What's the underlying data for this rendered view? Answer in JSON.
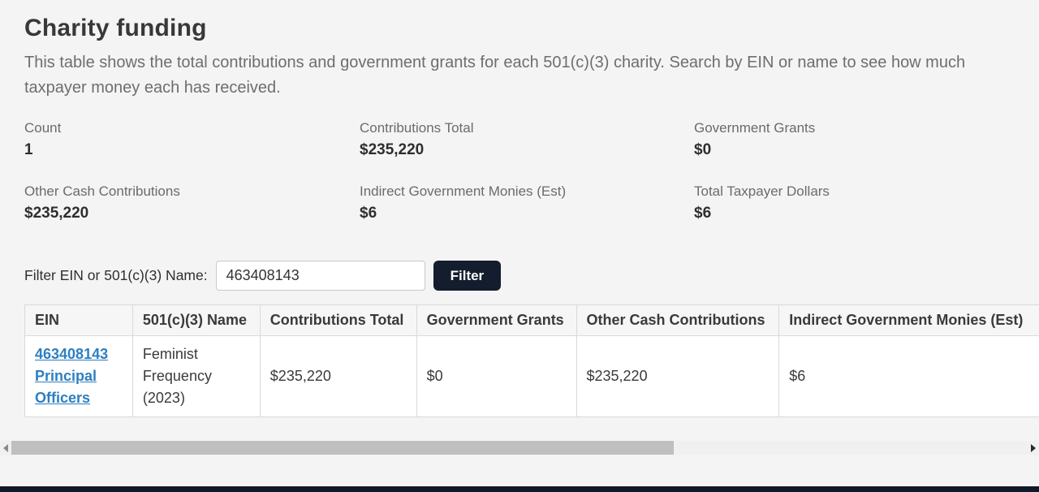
{
  "page": {
    "title": "Charity funding",
    "description": "This table shows the total contributions and government grants for each 501(c)(3) charity. Search by EIN or name to see how much taxpayer money each has received."
  },
  "stats": [
    {
      "label": "Count",
      "value": "1"
    },
    {
      "label": "Contributions Total",
      "value": "$235,220"
    },
    {
      "label": "Government Grants",
      "value": "$0"
    },
    {
      "label": "Other Cash Contributions",
      "value": "$235,220"
    },
    {
      "label": "Indirect Government Monies (Est)",
      "value": "$6"
    },
    {
      "label": "Total Taxpayer Dollars",
      "value": "$6"
    }
  ],
  "filter": {
    "label": "Filter EIN or 501(c)(3) Name:",
    "input_value": "463408143",
    "button_label": "Filter"
  },
  "table": {
    "columns": [
      "EIN",
      "501(c)(3) Name",
      "Contributions Total",
      "Government Grants",
      "Other Cash Contributions",
      "Indirect Government Monies (Est)"
    ],
    "rows": [
      {
        "ein_link": "463408143",
        "officers_link": "Principal Officers",
        "name": "Feminist Frequency (2023)",
        "contributions_total": "$235,220",
        "government_grants": "$0",
        "other_cash_contributions": "$235,220",
        "indirect_government_monies": "$6"
      }
    ]
  },
  "colors": {
    "accent_navy": "#141d2e",
    "link_blue": "#2d7fc1",
    "page_bg": "#f4f4f5"
  }
}
